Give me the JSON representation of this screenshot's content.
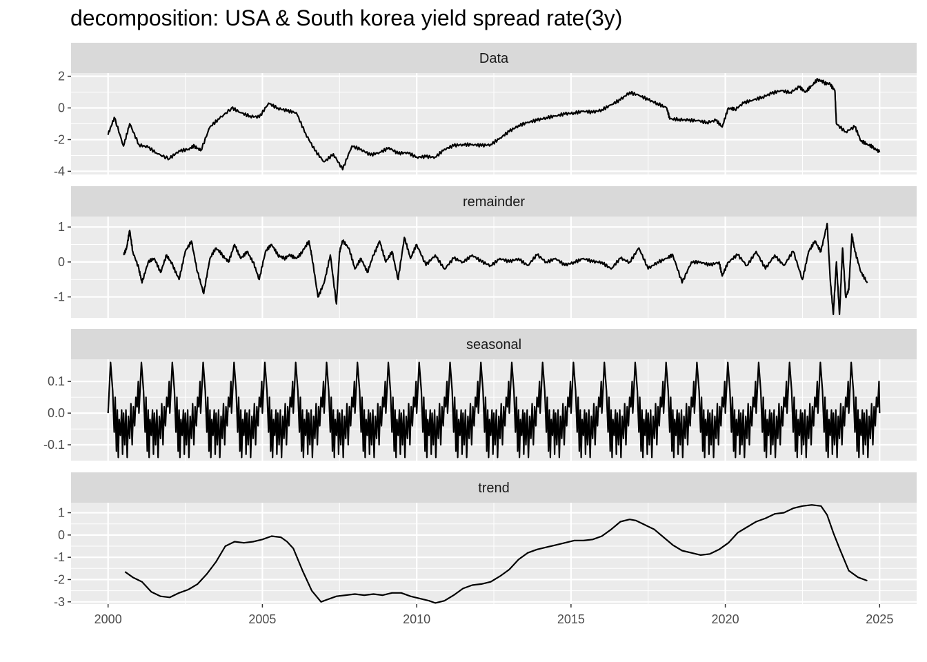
{
  "chart_data": {
    "type": "line",
    "title": "decomposition: USA & South korea yield spread rate(3y)",
    "x_axis": {
      "range": [
        1998.8,
        2026.2
      ],
      "ticks": [
        2000,
        2005,
        2010,
        2015,
        2020,
        2025
      ],
      "tick_labels": [
        "2000",
        "2005",
        "2010",
        "2015",
        "2020",
        "2025"
      ]
    },
    "colors": {
      "line": "#000000",
      "panel_bg": "#ebebeb",
      "strip_bg": "#d9d9d9",
      "grid": "#ffffff"
    },
    "panels": [
      {
        "name": "Data",
        "ylim": [
          -4.2,
          2.2
        ],
        "ticks": [
          2,
          0,
          -2,
          -4
        ],
        "tick_labels": [
          "2",
          "0",
          "-2",
          "-4"
        ],
        "x": [
          2000.0,
          2000.2,
          2000.5,
          2000.7,
          2001.0,
          2001.3,
          2001.6,
          2002.0,
          2002.3,
          2002.6,
          2002.8,
          2003.0,
          2003.3,
          2003.6,
          2004.0,
          2004.3,
          2004.6,
          2004.9,
          2005.2,
          2005.5,
          2005.8,
          2006.1,
          2006.4,
          2006.7,
          2007.0,
          2007.3,
          2007.6,
          2007.9,
          2008.2,
          2008.5,
          2008.8,
          2009.1,
          2009.4,
          2009.7,
          2010.0,
          2010.3,
          2010.6,
          2010.9,
          2011.2,
          2011.5,
          2011.8,
          2012.1,
          2012.4,
          2012.7,
          2013.0,
          2013.3,
          2013.6,
          2013.9,
          2014.2,
          2014.5,
          2014.8,
          2015.1,
          2015.4,
          2015.7,
          2016.0,
          2016.3,
          2016.6,
          2016.9,
          2017.2,
          2017.5,
          2017.8,
          2018.1,
          2018.2,
          2018.5,
          2018.8,
          2019.1,
          2019.4,
          2019.7,
          2019.9,
          2020.1,
          2020.3,
          2020.6,
          2020.9,
          2021.2,
          2021.5,
          2021.8,
          2022.1,
          2022.4,
          2022.6,
          2022.8,
          2023.0,
          2023.2,
          2023.4,
          2023.55,
          2023.6,
          2023.9,
          2024.2,
          2024.4,
          2024.6,
          2024.8,
          2025.0
        ],
        "y": [
          -1.7,
          -0.6,
          -2.4,
          -1.0,
          -2.3,
          -2.5,
          -2.9,
          -3.2,
          -2.7,
          -2.6,
          -2.4,
          -2.7,
          -1.2,
          -0.7,
          0.0,
          -0.3,
          -0.5,
          -0.6,
          0.3,
          0.0,
          -0.2,
          -0.3,
          -1.6,
          -2.7,
          -3.4,
          -2.9,
          -3.9,
          -2.4,
          -2.6,
          -3.0,
          -2.8,
          -2.5,
          -2.9,
          -2.8,
          -3.1,
          -3.1,
          -3.1,
          -2.6,
          -2.4,
          -2.3,
          -2.3,
          -2.4,
          -2.3,
          -1.9,
          -1.5,
          -1.1,
          -0.9,
          -0.8,
          -0.6,
          -0.5,
          -0.4,
          -0.3,
          -0.2,
          -0.3,
          -0.1,
          0.2,
          0.5,
          1.0,
          0.8,
          0.5,
          0.3,
          0.0,
          -0.7,
          -0.7,
          -0.8,
          -0.8,
          -0.9,
          -0.8,
          -1.2,
          0.0,
          -0.1,
          0.3,
          0.5,
          0.7,
          0.9,
          1.1,
          1.0,
          1.3,
          1.0,
          1.4,
          1.8,
          1.6,
          1.5,
          1.1,
          -1.0,
          -1.5,
          -1.2,
          -2.1,
          -2.3,
          -2.5,
          -2.8
        ]
      },
      {
        "name": "remainder",
        "ylim": [
          -1.6,
          1.3
        ],
        "ticks": [
          1,
          0,
          -1
        ],
        "tick_labels": [
          "1",
          "0",
          "-1"
        ],
        "x": [
          2000.5,
          2000.6,
          2000.7,
          2000.8,
          2001.0,
          2001.1,
          2001.3,
          2001.5,
          2001.7,
          2001.9,
          2002.1,
          2002.3,
          2002.5,
          2002.7,
          2002.9,
          2003.1,
          2003.3,
          2003.5,
          2003.7,
          2003.9,
          2004.1,
          2004.3,
          2004.5,
          2004.7,
          2004.9,
          2005.1,
          2005.3,
          2005.5,
          2005.7,
          2005.9,
          2006.1,
          2006.3,
          2006.5,
          2006.6,
          2006.8,
          2007.0,
          2007.2,
          2007.4,
          2007.5,
          2007.6,
          2007.8,
          2008.0,
          2008.2,
          2008.4,
          2008.6,
          2008.8,
          2009.0,
          2009.2,
          2009.4,
          2009.6,
          2009.8,
          2010.0,
          2010.3,
          2010.6,
          2010.9,
          2011.2,
          2011.5,
          2011.8,
          2012.1,
          2012.4,
          2012.7,
          2013.0,
          2013.3,
          2013.6,
          2013.9,
          2014.2,
          2014.5,
          2014.8,
          2015.1,
          2015.4,
          2015.7,
          2016.0,
          2016.3,
          2016.6,
          2016.9,
          2017.2,
          2017.5,
          2017.8,
          2018.1,
          2018.3,
          2018.6,
          2018.9,
          2019.2,
          2019.5,
          2019.8,
          2019.9,
          2020.1,
          2020.4,
          2020.7,
          2021.0,
          2021.3,
          2021.6,
          2021.9,
          2022.2,
          2022.5,
          2022.7,
          2022.9,
          2023.1,
          2023.3,
          2023.4,
          2023.5,
          2023.6,
          2023.7,
          2023.8,
          2023.9,
          2024.0,
          2024.1,
          2024.2,
          2024.4,
          2024.6
        ],
        "y": [
          0.2,
          0.4,
          0.9,
          0.3,
          -0.2,
          -0.6,
          0.0,
          0.1,
          -0.3,
          0.2,
          -0.1,
          -0.5,
          0.3,
          0.6,
          -0.3,
          -0.9,
          0.1,
          0.4,
          0.2,
          0.0,
          0.5,
          0.1,
          0.3,
          0.0,
          -0.5,
          0.3,
          0.5,
          0.2,
          0.1,
          0.2,
          0.1,
          0.3,
          0.6,
          0.2,
          -1.0,
          -0.6,
          0.2,
          -1.2,
          0.3,
          0.6,
          0.4,
          -0.2,
          0.1,
          -0.3,
          0.2,
          0.6,
          0.0,
          0.3,
          -0.5,
          0.7,
          0.1,
          0.5,
          -0.1,
          0.2,
          -0.2,
          0.1,
          0.0,
          0.2,
          0.0,
          -0.1,
          0.1,
          0.0,
          0.1,
          -0.1,
          0.2,
          0.0,
          0.1,
          -0.1,
          0.0,
          0.1,
          0.0,
          0.0,
          -0.2,
          0.1,
          0.0,
          0.4,
          -0.2,
          0.0,
          0.1,
          0.2,
          -0.6,
          0.0,
          0.0,
          -0.1,
          0.0,
          -0.4,
          0.0,
          0.2,
          -0.1,
          0.3,
          -0.2,
          0.2,
          -0.1,
          0.3,
          -0.5,
          0.3,
          0.6,
          0.3,
          1.1,
          -0.5,
          -1.5,
          0.0,
          -1.5,
          0.4,
          -1.0,
          -0.8,
          0.8,
          0.3,
          -0.3,
          -0.6
        ]
      },
      {
        "name": "seasonal",
        "ylim": [
          -0.15,
          0.17
        ],
        "ticks": [
          0.1,
          0.0,
          -0.1
        ],
        "tick_labels": [
          "0.1",
          "0.0",
          "-0.1"
        ],
        "period_start": 2000.0,
        "period_end": 2025.0,
        "shape_phase": [
          0.0,
          0.08,
          0.15,
          0.2,
          0.23,
          0.27,
          0.3,
          0.33,
          0.36,
          0.4,
          0.44,
          0.47,
          0.5,
          0.54,
          0.58,
          0.62,
          0.66,
          0.7,
          0.74,
          0.78,
          0.82,
          0.86,
          0.9,
          0.94,
          0.98,
          1.0
        ],
        "shape_value": [
          0.0,
          0.16,
          0.07,
          -0.06,
          0.05,
          -0.12,
          0.01,
          -0.14,
          -0.02,
          -0.07,
          0.01,
          -0.13,
          0.0,
          -0.1,
          0.01,
          -0.14,
          -0.01,
          -0.08,
          0.03,
          -0.1,
          0.02,
          -0.04,
          0.05,
          0.02,
          0.1,
          0.0
        ]
      },
      {
        "name": "trend",
        "ylim": [
          -3.1,
          1.45
        ],
        "ticks": [
          1,
          0,
          -1,
          -2,
          -3
        ],
        "tick_labels": [
          "1",
          "0",
          "-1",
          "-2",
          "-3"
        ],
        "x": [
          2000.55,
          2000.8,
          2001.1,
          2001.4,
          2001.7,
          2002.0,
          2002.3,
          2002.6,
          2002.9,
          2003.2,
          2003.5,
          2003.8,
          2004.1,
          2004.4,
          2004.7,
          2005.0,
          2005.3,
          2005.6,
          2005.8,
          2006.0,
          2006.3,
          2006.6,
          2006.9,
          2007.1,
          2007.4,
          2007.7,
          2008.0,
          2008.3,
          2008.6,
          2008.9,
          2009.2,
          2009.5,
          2009.8,
          2010.1,
          2010.4,
          2010.6,
          2010.9,
          2011.2,
          2011.5,
          2011.8,
          2012.1,
          2012.4,
          2012.7,
          2013.0,
          2013.3,
          2013.6,
          2013.9,
          2014.2,
          2014.5,
          2014.8,
          2015.1,
          2015.4,
          2015.7,
          2016.0,
          2016.3,
          2016.6,
          2016.9,
          2017.1,
          2017.4,
          2017.7,
          2018.0,
          2018.3,
          2018.6,
          2018.9,
          2019.2,
          2019.5,
          2019.8,
          2020.1,
          2020.4,
          2020.7,
          2021.0,
          2021.3,
          2021.6,
          2021.9,
          2022.2,
          2022.5,
          2022.8,
          2023.1,
          2023.3,
          2023.5,
          2023.7,
          2024.0,
          2024.3,
          2024.6
        ],
        "y": [
          -1.65,
          -1.9,
          -2.1,
          -2.55,
          -2.75,
          -2.8,
          -2.6,
          -2.45,
          -2.2,
          -1.75,
          -1.2,
          -0.5,
          -0.3,
          -0.35,
          -0.3,
          -0.2,
          -0.05,
          -0.1,
          -0.3,
          -0.6,
          -1.6,
          -2.5,
          -3.0,
          -2.9,
          -2.75,
          -2.7,
          -2.65,
          -2.7,
          -2.65,
          -2.7,
          -2.6,
          -2.6,
          -2.75,
          -2.85,
          -2.95,
          -3.05,
          -2.95,
          -2.7,
          -2.4,
          -2.25,
          -2.2,
          -2.1,
          -1.85,
          -1.55,
          -1.1,
          -0.8,
          -0.65,
          -0.55,
          -0.45,
          -0.35,
          -0.25,
          -0.25,
          -0.2,
          -0.05,
          0.25,
          0.6,
          0.7,
          0.65,
          0.45,
          0.25,
          -0.1,
          -0.45,
          -0.7,
          -0.8,
          -0.9,
          -0.85,
          -0.65,
          -0.35,
          0.1,
          0.35,
          0.6,
          0.75,
          0.95,
          1.0,
          1.2,
          1.3,
          1.35,
          1.3,
          0.9,
          0.1,
          -0.6,
          -1.6,
          -1.9,
          -2.05
        ]
      }
    ]
  }
}
